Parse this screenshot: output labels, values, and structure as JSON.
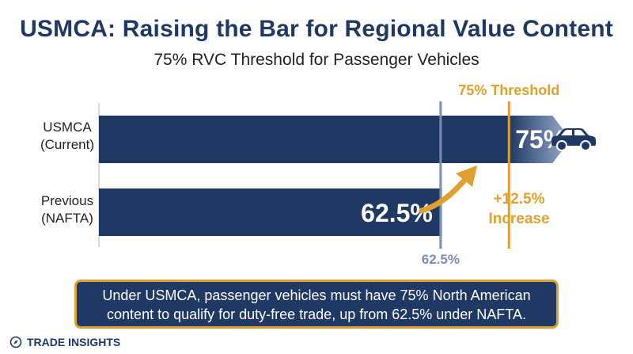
{
  "title": "USMCA: Raising the Bar for Regional Value Content",
  "subtitle": "75% RVC Threshold for Passenger Vehicles",
  "summary_line1": "Under USMCA, passenger vehicles must have 75% North American",
  "summary_line2": "content to qualify for duty-free trade, up from 62.5% under NAFTA.",
  "footer": "TRADE INSIGHTS",
  "icons": [
    "car-icon",
    "compass-icon",
    "curved-arrow-icon"
  ],
  "colors": {
    "bar": "#1f3864",
    "accent": "#e0a030",
    "previous_line": "#7b8db5",
    "text": "#222222"
  },
  "chart_data": {
    "type": "bar",
    "orientation": "horizontal",
    "categories": [
      "USMCA (Current)",
      "Previous (NAFTA)"
    ],
    "category_lines": [
      [
        "USMCA",
        "(Current)"
      ],
      [
        "Previous",
        "(NAFTA)"
      ]
    ],
    "values": [
      75,
      62.5
    ],
    "value_labels": [
      "75%",
      "62.5%"
    ],
    "reference_lines": [
      {
        "value": 75,
        "label": "75% Threshold",
        "color": "#e0a030",
        "label_position": "top"
      },
      {
        "value": 62.5,
        "label": "62.5%",
        "color": "#7b8db5",
        "label_position": "bottom"
      }
    ],
    "annotation": {
      "lines": [
        "+12.5%",
        "Increase"
      ],
      "color": "#e0a030"
    },
    "xlim": [
      0,
      100
    ],
    "grid": false,
    "legend": "none"
  }
}
